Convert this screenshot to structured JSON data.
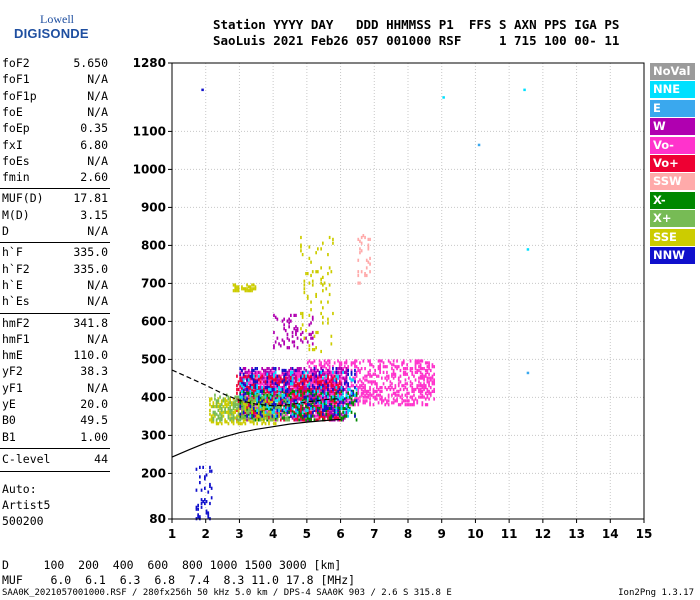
{
  "logo": {
    "line1": "Lowell",
    "line2": "DIGISONDE"
  },
  "header": {
    "line1": "Station YYYY DAY   DDD HHMMSS P1  FFS S AXN PPS IGA PS",
    "line2": "SaoLuis 2021 Feb26 057 001000 RSF     1 715 100 00- 11"
  },
  "params": {
    "group1": [
      {
        "k": "foF2",
        "v": "5.650"
      },
      {
        "k": "foF1",
        "v": "N/A"
      },
      {
        "k": "foF1p",
        "v": "N/A"
      },
      {
        "k": "foE",
        "v": "N/A"
      },
      {
        "k": "foEp",
        "v": "0.35"
      },
      {
        "k": "fxI",
        "v": "6.80"
      },
      {
        "k": "foEs",
        "v": "N/A"
      },
      {
        "k": "fmin",
        "v": "2.60"
      }
    ],
    "group2": [
      {
        "k": "MUF(D)",
        "v": "17.81"
      },
      {
        "k": "M(D)",
        "v": "3.15"
      },
      {
        "k": "D",
        "v": "N/A"
      }
    ],
    "group3": [
      {
        "k": "h`F",
        "v": "335.0"
      },
      {
        "k": "h`F2",
        "v": "335.0"
      },
      {
        "k": "h`E",
        "v": "N/A"
      },
      {
        "k": "h`Es",
        "v": "N/A"
      }
    ],
    "group4": [
      {
        "k": "hmF2",
        "v": "341.8"
      },
      {
        "k": "hmF1",
        "v": "N/A"
      },
      {
        "k": "hmE",
        "v": "110.0"
      },
      {
        "k": "yF2",
        "v": "38.3"
      },
      {
        "k": "yF1",
        "v": "N/A"
      },
      {
        "k": "yE",
        "v": "20.0"
      },
      {
        "k": "B0",
        "v": "49.5"
      },
      {
        "k": "B1",
        "v": "1.00"
      }
    ],
    "clevel": {
      "k": "C-level",
      "v": "44"
    },
    "auto": [
      "Auto:",
      "Artist5",
      "500200"
    ]
  },
  "legend": [
    {
      "label": "NoVal",
      "color": "#9b9b9b"
    },
    {
      "label": "NNE",
      "color": "#00e0ff"
    },
    {
      "label": "E",
      "color": "#3aa8ee"
    },
    {
      "label": "W",
      "color": "#b000b0"
    },
    {
      "label": "Vo-",
      "color": "#ff33cc"
    },
    {
      "label": "Vo+",
      "color": "#ee0033"
    },
    {
      "label": "SSW",
      "color": "#ffaaaa"
    },
    {
      "label": "X-",
      "color": "#008800"
    },
    {
      "label": "X+",
      "color": "#77bb55"
    },
    {
      "label": "SSE",
      "color": "#cccc00"
    },
    {
      "label": "NNW",
      "color": "#1010cc"
    }
  ],
  "footer": {
    "line1": "D     100  200  400  600  800 1000 1500 3000 [km]",
    "line2": "MUF    6.0  6.1  6.3  6.8  7.4  8.3 11.0 17.8 [MHz]",
    "bottom": "SAA0K_2021057001000.RSF / 280fx256h 50 kHz 5.0 km / DPS-4 SAA0K 903 / 2.6 S 315.8 E",
    "version": "Ion2Png 1.3.17"
  },
  "chart_data": {
    "type": "scatter",
    "xlim": [
      1,
      15
    ],
    "ylim": [
      80,
      1280
    ],
    "x_ticks": [
      1,
      2,
      3,
      4,
      5,
      6,
      7,
      8,
      9,
      10,
      11,
      12,
      13,
      14,
      15
    ],
    "y_ticks": [
      80,
      200,
      300,
      400,
      500,
      600,
      700,
      800,
      900,
      1000,
      1100,
      1280
    ],
    "grid": true,
    "legend_position": "right",
    "clusters": [
      {
        "direction": "Vo-",
        "x_range": [
          3.0,
          6.0
        ],
        "y_range": [
          350,
          470
        ],
        "density": 0.55
      },
      {
        "direction": "Vo-",
        "x_range": [
          5.0,
          8.8
        ],
        "y_range": [
          380,
          500
        ],
        "density": 0.35
      },
      {
        "direction": "W",
        "x_range": [
          3.0,
          6.2
        ],
        "y_range": [
          340,
          480
        ],
        "density": 0.3
      },
      {
        "direction": "Vo+",
        "x_range": [
          2.9,
          6.0
        ],
        "y_range": [
          340,
          460
        ],
        "density": 0.3
      },
      {
        "direction": "X-",
        "x_range": [
          3.0,
          6.5
        ],
        "y_range": [
          340,
          420
        ],
        "density": 0.25
      },
      {
        "direction": "SSE",
        "x_range": [
          2.1,
          4.2
        ],
        "y_range": [
          330,
          400
        ],
        "density": 0.35
      },
      {
        "direction": "X+",
        "x_range": [
          2.2,
          4.5
        ],
        "y_range": [
          340,
          410
        ],
        "density": 0.25
      },
      {
        "direction": "NNW",
        "x_range": [
          3.0,
          6.5
        ],
        "y_range": [
          350,
          480
        ],
        "density": 0.12
      },
      {
        "direction": "NNE",
        "x_range": [
          3.0,
          6.5
        ],
        "y_range": [
          350,
          470
        ],
        "density": 0.08
      },
      {
        "direction": "W",
        "x_range": [
          4.0,
          5.2
        ],
        "y_range": [
          530,
          620
        ],
        "density": 0.15
      },
      {
        "direction": "SSE",
        "x_range": [
          2.8,
          3.5
        ],
        "y_range": [
          680,
          700
        ],
        "density": 0.5
      },
      {
        "direction": "SSE",
        "x_range": [
          4.8,
          5.8
        ],
        "y_range": [
          520,
          830
        ],
        "density": 0.05
      },
      {
        "direction": "SSW",
        "x_range": [
          6.5,
          6.9
        ],
        "y_range": [
          700,
          830
        ],
        "density": 0.1
      },
      {
        "direction": "NNW",
        "x_range": [
          1.7,
          2.2
        ],
        "y_range": [
          80,
          220
        ],
        "density": 0.15
      }
    ],
    "isolated_points": [
      {
        "direction": "NNW",
        "x": 1.9,
        "y": 1210
      },
      {
        "direction": "NNE",
        "x": 9.05,
        "y": 1190
      },
      {
        "direction": "NNE",
        "x": 11.45,
        "y": 1210
      },
      {
        "direction": "E",
        "x": 10.1,
        "y": 1065
      },
      {
        "direction": "NNE",
        "x": 11.55,
        "y": 790
      },
      {
        "direction": "E",
        "x": 11.55,
        "y": 465
      }
    ],
    "curves": [
      {
        "name": "profile",
        "style": "solid",
        "points": [
          [
            1,
            243
          ],
          [
            1.5,
            262
          ],
          [
            2,
            280
          ],
          [
            2.5,
            295
          ],
          [
            3,
            307
          ],
          [
            3.5,
            316
          ],
          [
            4,
            323
          ],
          [
            4.5,
            330
          ],
          [
            5,
            335
          ],
          [
            5.5,
            339
          ],
          [
            6,
            342
          ]
        ]
      },
      {
        "name": "trace",
        "style": "dashed",
        "points": [
          [
            1,
            472
          ],
          [
            1.5,
            452
          ],
          [
            2,
            432
          ],
          [
            2.5,
            410
          ],
          [
            3,
            392
          ],
          [
            3.5,
            382
          ],
          [
            4,
            378
          ],
          [
            4.5,
            381
          ],
          [
            5,
            388
          ],
          [
            5.5,
            394
          ],
          [
            6,
            397
          ]
        ]
      }
    ]
  }
}
